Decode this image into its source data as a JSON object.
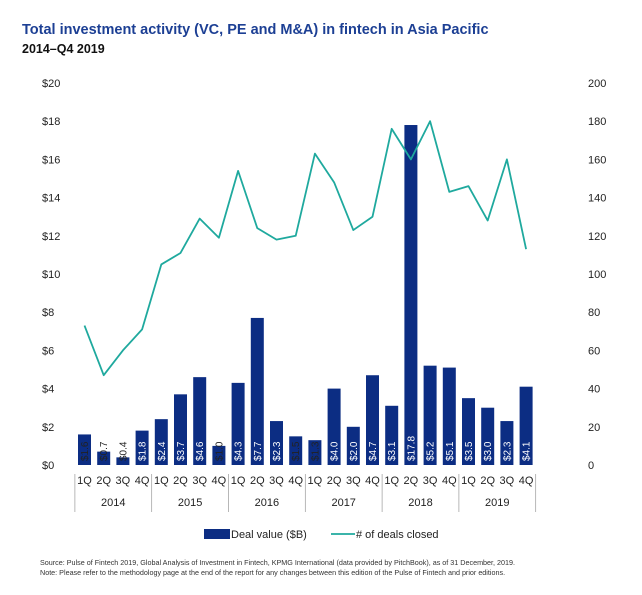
{
  "title": "Total investment activity (VC, PE and M&A) in fintech in Asia Pacific",
  "subtitle": "2014–Q4 2019",
  "colors": {
    "bar": "#0c2d83",
    "line": "#1fa99e",
    "title": "#1c3f94"
  },
  "chart_data": {
    "type": "bar",
    "categories": [
      "1Q",
      "2Q",
      "3Q",
      "4Q",
      "1Q",
      "2Q",
      "3Q",
      "4Q",
      "1Q",
      "2Q",
      "3Q",
      "4Q",
      "1Q",
      "2Q",
      "3Q",
      "4Q",
      "1Q",
      "2Q",
      "3Q",
      "4Q",
      "1Q",
      "2Q",
      "3Q",
      "4Q"
    ],
    "years": [
      "2014",
      "2015",
      "2016",
      "2017",
      "2018",
      "2019"
    ],
    "series": [
      {
        "name": "Deal value ($B)",
        "type": "bar",
        "axis": "left",
        "values": [
          1.6,
          0.7,
          0.4,
          1.8,
          2.4,
          3.7,
          4.6,
          1.0,
          4.3,
          7.7,
          2.3,
          1.5,
          1.3,
          4.0,
          2.0,
          4.7,
          3.1,
          17.8,
          5.2,
          5.1,
          3.5,
          3.0,
          2.3,
          4.1
        ],
        "labels": [
          "$1.6",
          "$0.7",
          "$0.4",
          "$1.8",
          "$2.4",
          "$3.7",
          "$4.6",
          "$1.0",
          "$4.3",
          "$7.7",
          "$2.3",
          "$1.5",
          "$1.3",
          "$4.0",
          "$2.0",
          "$4.7",
          "$3.1",
          "$17.8",
          "$5.2",
          "$5.1",
          "$3.5",
          "$3.0",
          "$2.3",
          "$4.1"
        ]
      },
      {
        "name": "# of deals closed",
        "type": "line",
        "axis": "right",
        "values": [
          73,
          47,
          60,
          71,
          105,
          111,
          129,
          119,
          154,
          124,
          118,
          120,
          163,
          148,
          123,
          130,
          176,
          160,
          180,
          143,
          146,
          128,
          160,
          113
        ]
      }
    ],
    "ylim_left": [
      0,
      20
    ],
    "ylim_right": [
      0,
      200
    ],
    "yticks_left": [
      "$0",
      "$2",
      "$4",
      "$6",
      "$8",
      "$10",
      "$12",
      "$14",
      "$16",
      "$18",
      "$20"
    ],
    "yticks_right": [
      "0",
      "20",
      "40",
      "60",
      "80",
      "100",
      "120",
      "140",
      "160",
      "180",
      "200"
    ],
    "grid": false,
    "legend_position": "bottom"
  },
  "footnotes": {
    "source": "Source: Pulse of Fintech 2019, Global Analysis of Investment in Fintech, KPMG International (data provided by PitchBook), as of 31 December, 2019.",
    "note": "Note: Please refer to the methodology page at the end of the report for any changes between this edition of the Pulse of Fintech and prior editions."
  }
}
